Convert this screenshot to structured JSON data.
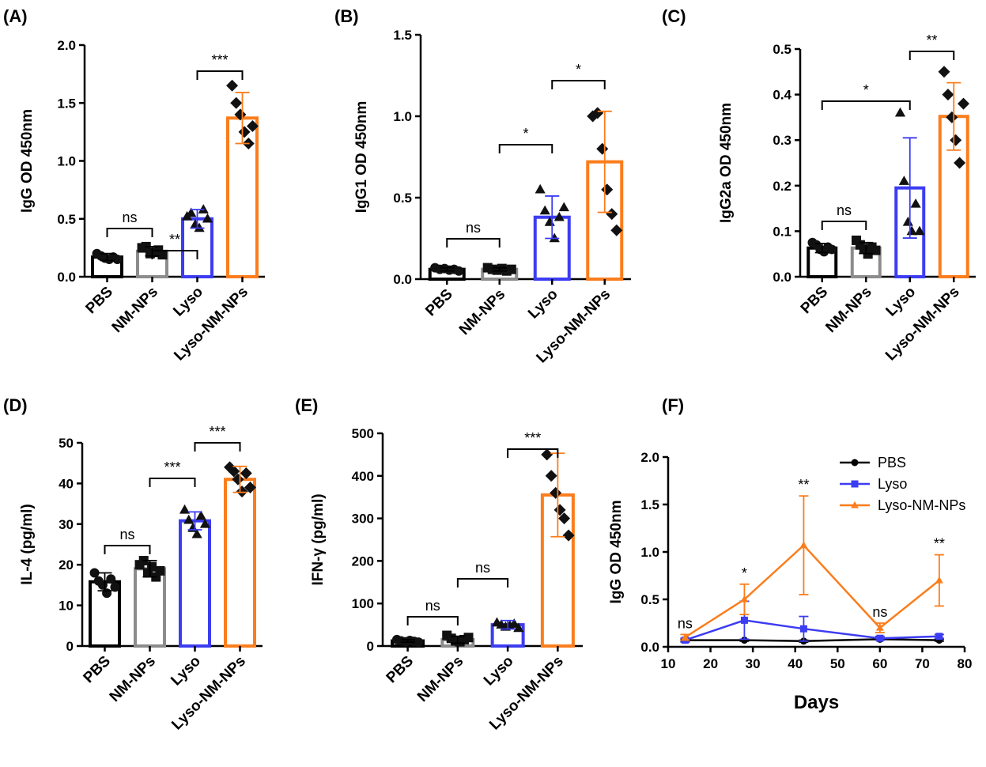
{
  "colors": {
    "PBS": "#000000",
    "NM-NPs": "#8c8c8c",
    "Lyso": "#3c3cf2",
    "Lyso-NM-NPs": "#fb7d1c"
  },
  "chart_data": [
    {
      "panel": "(A)",
      "type": "bar",
      "categories": [
        "PBS",
        "NM-NPs",
        "Lyso",
        "Lyso-NM-NPs"
      ],
      "values": [
        0.17,
        0.22,
        0.5,
        1.37
      ],
      "errors": [
        0.03,
        0.04,
        0.08,
        0.22
      ],
      "points": [
        [
          0.2,
          0.18,
          0.16,
          0.15,
          0.17,
          0.15
        ],
        [
          0.25,
          0.26,
          0.2,
          0.21,
          0.23,
          0.19
        ],
        [
          0.52,
          0.55,
          0.45,
          0.42,
          0.58,
          0.5
        ],
        [
          1.65,
          1.5,
          1.4,
          1.25,
          1.15,
          1.3
        ]
      ],
      "ylabel": "IgG OD 450nm",
      "ylim": [
        0,
        2.0
      ],
      "yticks": [
        "0.0",
        "0.5",
        "1.0",
        "1.5",
        "2.0"
      ],
      "comparisons": [
        {
          "from": "PBS",
          "to": "NM-NPs",
          "label": "ns"
        },
        {
          "from": "NM-NPs",
          "to": "Lyso",
          "label": "**"
        },
        {
          "from": "Lyso",
          "to": "Lyso-NM-NPs",
          "label": "***"
        }
      ]
    },
    {
      "panel": "(B)",
      "type": "bar",
      "categories": [
        "PBS",
        "NM-NPs",
        "Lyso",
        "Lyso-NM-NPs"
      ],
      "values": [
        0.06,
        0.06,
        0.38,
        0.72
      ],
      "errors": [
        0.01,
        0.01,
        0.13,
        0.31
      ],
      "points": [
        [
          0.07,
          0.06,
          0.065,
          0.055,
          0.06,
          0.05
        ],
        [
          0.07,
          0.06,
          0.055,
          0.065,
          0.05,
          0.06
        ],
        [
          0.55,
          0.42,
          0.35,
          0.25,
          0.38,
          0.44
        ],
        [
          1.0,
          1.02,
          0.8,
          0.55,
          0.4,
          0.3
        ]
      ],
      "ylabel": "IgG1 OD 450nm",
      "ylim": [
        0,
        1.5
      ],
      "yticks": [
        "0.0",
        "0.5",
        "1.0",
        "1.5"
      ],
      "comparisons": [
        {
          "from": "PBS",
          "to": "NM-NPs",
          "label": "ns"
        },
        {
          "from": "NM-NPs",
          "to": "Lyso",
          "label": "*"
        },
        {
          "from": "Lyso",
          "to": "Lyso-NM-NPs",
          "label": "*"
        }
      ]
    },
    {
      "panel": "(C)",
      "type": "bar",
      "categories": [
        "PBS",
        "NM-NPs",
        "Lyso",
        "Lyso-NM-NPs"
      ],
      "values": [
        0.063,
        0.063,
        0.195,
        0.352
      ],
      "errors": [
        0.01,
        0.012,
        0.11,
        0.074
      ],
      "points": [
        [
          0.075,
          0.07,
          0.06,
          0.055,
          0.065,
          0.06
        ],
        [
          0.08,
          0.07,
          0.06,
          0.05,
          0.065,
          0.058
        ],
        [
          0.36,
          0.21,
          0.12,
          0.1,
          0.16,
          0.1
        ],
        [
          0.45,
          0.4,
          0.35,
          0.3,
          0.25,
          0.38
        ]
      ],
      "ylabel": "IgG2a OD 450nm",
      "ylim": [
        0,
        0.5
      ],
      "yticks": [
        "0.0",
        "0.1",
        "0.2",
        "0.3",
        "0.4",
        "0.5"
      ],
      "comparisons": [
        {
          "from": "PBS",
          "to": "NM-NPs",
          "label": "ns"
        },
        {
          "from": "PBS",
          "to": "Lyso",
          "label": "*"
        },
        {
          "from": "Lyso",
          "to": "Lyso-NM-NPs",
          "label": "**"
        }
      ]
    },
    {
      "panel": "(D)",
      "type": "bar",
      "categories": [
        "PBS",
        "NM-NPs",
        "Lyso",
        "Lyso-NM-NPs"
      ],
      "values": [
        15.8,
        19.0,
        30.8,
        41.0
      ],
      "errors": [
        2.2,
        2.0,
        2.2,
        3.2
      ],
      "points": [
        [
          18.0,
          16.0,
          15.0,
          13.0,
          16.5,
          14.5
        ],
        [
          20.0,
          21.0,
          18.0,
          19.5,
          17.0,
          18.5
        ],
        [
          33.5,
          31.0,
          29.0,
          27.5,
          32.0,
          30.0
        ],
        [
          44.0,
          43.0,
          41.0,
          38.0,
          42.5,
          39.0
        ]
      ],
      "ylabel": "IL-4 (pg/ml)",
      "ylim": [
        0,
        50
      ],
      "yticks": [
        "0",
        "10",
        "20",
        "30",
        "40",
        "50"
      ],
      "comparisons": [
        {
          "from": "PBS",
          "to": "NM-NPs",
          "label": "ns"
        },
        {
          "from": "NM-NPs",
          "to": "Lyso",
          "label": "***"
        },
        {
          "from": "Lyso",
          "to": "Lyso-NM-NPs",
          "label": "***"
        }
      ]
    },
    {
      "panel": "(E)",
      "type": "bar",
      "categories": [
        "PBS",
        "NM-NPs",
        "Lyso",
        "Lyso-NM-NPs"
      ],
      "values": [
        12,
        15,
        50,
        355
      ],
      "errors": [
        3,
        8,
        10,
        98
      ],
      "points": [
        [
          15,
          12,
          10,
          13,
          11,
          9
        ],
        [
          25,
          18,
          12,
          10,
          15,
          20
        ],
        [
          55,
          50,
          45,
          48,
          52,
          42
        ],
        [
          450,
          400,
          360,
          320,
          300,
          260
        ]
      ],
      "ylabel": "IFN-γ (pg/ml)",
      "ylim": [
        0,
        500
      ],
      "yticks": [
        "0",
        "100",
        "200",
        "300",
        "400",
        "500"
      ],
      "comparisons": [
        {
          "from": "PBS",
          "to": "NM-NPs",
          "label": "ns"
        },
        {
          "from": "NM-NPs",
          "to": "Lyso",
          "label": "ns"
        },
        {
          "from": "Lyso",
          "to": "Lyso-NM-NPs",
          "label": "***"
        }
      ]
    },
    {
      "panel": "(F)",
      "type": "line",
      "x": [
        14,
        28,
        42,
        60,
        74
      ],
      "series": [
        {
          "name": "PBS",
          "values": [
            0.07,
            0.07,
            0.06,
            0.08,
            0.07
          ],
          "errors": [
            0.01,
            0.01,
            0.01,
            0.01,
            0.01
          ]
        },
        {
          "name": "Lyso",
          "values": [
            0.07,
            0.28,
            0.19,
            0.09,
            0.11
          ],
          "errors": [
            0.02,
            0.2,
            0.13,
            0.02,
            0.02
          ]
        },
        {
          "name": "Lyso-NM-NPs",
          "values": [
            0.1,
            0.5,
            1.07,
            0.2,
            0.7
          ],
          "errors": [
            0.03,
            0.16,
            0.52,
            0.05,
            0.27
          ]
        }
      ],
      "annotations": [
        {
          "x": 14,
          "label": "ns"
        },
        {
          "x": 28,
          "label": "*"
        },
        {
          "x": 42,
          "label": "**"
        },
        {
          "x": 60,
          "label": "ns"
        },
        {
          "x": 74,
          "label": "**"
        }
      ],
      "xlabel": "Days",
      "ylabel": "IgG OD 450nm",
      "xlim": [
        10,
        80
      ],
      "ylim": [
        0,
        2.0
      ],
      "xticks": [
        "10",
        "20",
        "30",
        "40",
        "50",
        "60",
        "70",
        "80"
      ],
      "yticks": [
        "0.0",
        "0.5",
        "1.0",
        "1.5",
        "2.0"
      ],
      "legend": "top-right"
    }
  ]
}
